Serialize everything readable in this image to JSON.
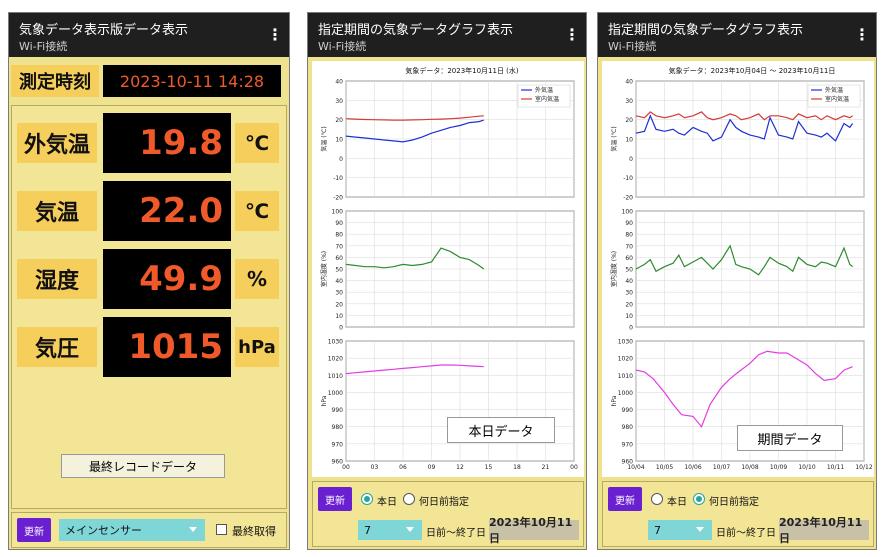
{
  "screen1": {
    "title": "気象データ表示版データ表示",
    "subtitle": "Wi-Fi接続",
    "menu_icon": "⋮",
    "datetime_label": "測定時刻",
    "datetime_value": "2023-10-11 14:28",
    "rows": [
      {
        "label": "外気温",
        "value": "19.8",
        "unit": "℃"
      },
      {
        "label": "気温",
        "value": "22.0",
        "unit": "℃"
      },
      {
        "label": "湿度",
        "value": "49.9",
        "unit": "%"
      },
      {
        "label": "気圧",
        "value": "1015",
        "unit": "hPa"
      }
    ],
    "caption": "最終レコードデータ",
    "refresh": "更新",
    "sensor": "メインセンサー",
    "latest_checkbox": "最終取得"
  },
  "screen2": {
    "title": "指定期間の気象データグラフ表示",
    "subtitle": "Wi-Fi接続",
    "menu_icon": "⋮",
    "caption": "本日データ",
    "refresh": "更新",
    "radio_today": "本日",
    "radio_days": "何日前指定",
    "days_value": "7",
    "range_text": "日前～終了日",
    "end_date": "2023年10月11日"
  },
  "screen3": {
    "title": "指定期間の気象データグラフ表示",
    "subtitle": "Wi-Fi接続",
    "menu_icon": "⋮",
    "caption": "期間データ",
    "refresh": "更新",
    "radio_today": "本日",
    "radio_days": "何日前指定",
    "days_value": "7",
    "range_text": "日前～終了日",
    "end_date": "2023年10月11日"
  },
  "chart_data": [
    {
      "type": "line",
      "title": "気象データ：2023年10月11日 (水)",
      "ylabel": "気温 (℃)",
      "ylim": [
        -20,
        40
      ],
      "yticks": [
        "-20",
        "-10",
        "0",
        "10",
        "20",
        "30",
        "40"
      ],
      "x": [
        0,
        1,
        2,
        3,
        4,
        5,
        6,
        7,
        8,
        9,
        10,
        11,
        12,
        13,
        14,
        14.5
      ],
      "series": [
        {
          "name": "外気温",
          "color": "#1f2fd6",
          "values": [
            11.5,
            11,
            10.5,
            10,
            9.5,
            9,
            8.5,
            9.5,
            11,
            13,
            14.5,
            16,
            17,
            18.5,
            19,
            19.8
          ]
        },
        {
          "name": "室内気温",
          "color": "#d63a3a",
          "values": [
            20.5,
            20.3,
            20.1,
            20,
            19.9,
            19.8,
            19.8,
            19.9,
            20,
            20.2,
            20.3,
            20.5,
            20.8,
            21.3,
            21.8,
            22.0
          ]
        }
      ]
    },
    {
      "type": "line",
      "ylabel": "室内湿度 (%)",
      "ylim": [
        0,
        100
      ],
      "yticks": [
        "0",
        "10",
        "20",
        "30",
        "40",
        "50",
        "60",
        "70",
        "80",
        "90",
        "100"
      ],
      "x": [
        0,
        1,
        2,
        3,
        4,
        5,
        6,
        7,
        8,
        9,
        10,
        11,
        12,
        13,
        14,
        14.5
      ],
      "series": [
        {
          "color": "#2e8b2e",
          "values": [
            54,
            53,
            52,
            52,
            51,
            52,
            54,
            53,
            54,
            56,
            68,
            65,
            60,
            58,
            53,
            50
          ]
        }
      ]
    },
    {
      "type": "line",
      "ylabel": "hPa",
      "ylim": [
        960,
        1030
      ],
      "yticks": [
        "960",
        "970",
        "980",
        "990",
        "1000",
        "1010",
        "1020",
        "1030"
      ],
      "xticks": [
        "00",
        "03",
        "06",
        "09",
        "12",
        "15",
        "18",
        "21",
        "00"
      ],
      "xlim": [
        0,
        24
      ],
      "x": [
        0,
        1,
        2,
        3,
        4,
        5,
        6,
        7,
        8,
        9,
        10,
        11,
        12,
        13,
        14,
        14.5
      ],
      "series": [
        {
          "color": "#e23de2",
          "values": [
            1011,
            1011.5,
            1012,
            1012.5,
            1013,
            1013.5,
            1014,
            1014.5,
            1015,
            1015.5,
            1016,
            1016,
            1015.8,
            1015.5,
            1015.2,
            1015
          ]
        }
      ]
    },
    {
      "type": "line",
      "title": "気象データ：2023年10月04日 ～ 2023年10月11日",
      "ylabel": "気温 (℃)",
      "ylim": [
        -20,
        40
      ],
      "yticks": [
        "-20",
        "-10",
        "0",
        "10",
        "20",
        "30",
        "40"
      ],
      "x": [
        0,
        0.3,
        0.5,
        0.7,
        1,
        1.3,
        1.5,
        1.7,
        2,
        2.3,
        2.5,
        2.7,
        3,
        3.3,
        3.5,
        3.7,
        4,
        4.3,
        4.5,
        4.7,
        5,
        5.3,
        5.5,
        5.7,
        6,
        6.3,
        6.5,
        6.7,
        7,
        7.3,
        7.5,
        7.6
      ],
      "series": [
        {
          "name": "外気温",
          "color": "#1f2fd6",
          "values": [
            13,
            14,
            22,
            15,
            14,
            15,
            13,
            12,
            16,
            14,
            13,
            9,
            11,
            20,
            16,
            14,
            12,
            11,
            10,
            21,
            12,
            11,
            10,
            19,
            13,
            12,
            11,
            13,
            9,
            18,
            16,
            18
          ]
        },
        {
          "name": "室内気温",
          "color": "#d63a3a",
          "values": [
            22,
            21,
            24,
            22,
            21,
            22,
            23,
            21,
            22,
            24,
            21,
            20,
            21,
            23,
            22,
            20,
            21,
            23,
            20,
            22,
            22,
            21,
            20,
            23,
            21,
            22,
            20,
            22,
            20,
            22,
            21,
            22
          ]
        }
      ]
    },
    {
      "type": "line",
      "ylabel": "室内湿度 (%)",
      "ylim": [
        0,
        100
      ],
      "yticks": [
        "0",
        "10",
        "20",
        "30",
        "40",
        "50",
        "60",
        "70",
        "80",
        "90",
        "100"
      ],
      "x": [
        0,
        0.3,
        0.5,
        0.7,
        1,
        1.3,
        1.5,
        1.7,
        2,
        2.3,
        2.5,
        2.7,
        3,
        3.3,
        3.5,
        3.7,
        4,
        4.3,
        4.5,
        4.7,
        5,
        5.3,
        5.5,
        5.7,
        6,
        6.3,
        6.5,
        6.7,
        7,
        7.3,
        7.5,
        7.6
      ],
      "series": [
        {
          "color": "#2e8b2e",
          "values": [
            50,
            54,
            58,
            48,
            52,
            55,
            62,
            52,
            56,
            60,
            55,
            50,
            58,
            70,
            54,
            52,
            50,
            45,
            52,
            60,
            55,
            52,
            48,
            60,
            54,
            52,
            56,
            55,
            52,
            68,
            54,
            52
          ]
        }
      ]
    },
    {
      "type": "line",
      "ylabel": "hPa",
      "ylim": [
        960,
        1030
      ],
      "yticks": [
        "960",
        "970",
        "980",
        "990",
        "1000",
        "1010",
        "1020",
        "1030"
      ],
      "xticks": [
        "10/04",
        "10/05",
        "10/06",
        "10/07",
        "10/08",
        "10/09",
        "10/10",
        "10/11",
        "10/12"
      ],
      "xlim": [
        0,
        8
      ],
      "x": [
        0,
        0.3,
        0.6,
        1,
        1.3,
        1.6,
        2,
        2.3,
        2.6,
        3,
        3.3,
        3.6,
        4,
        4.3,
        4.6,
        5,
        5.3,
        5.6,
        6,
        6.3,
        6.6,
        7,
        7.3,
        7.6
      ],
      "series": [
        {
          "color": "#e23de2",
          "values": [
            1013,
            1012,
            1008,
            1000,
            993,
            987,
            986,
            980,
            993,
            1003,
            1008,
            1012,
            1017,
            1022,
            1024,
            1023,
            1023,
            1020,
            1016,
            1011,
            1007,
            1008,
            1013,
            1015
          ]
        }
      ]
    }
  ]
}
